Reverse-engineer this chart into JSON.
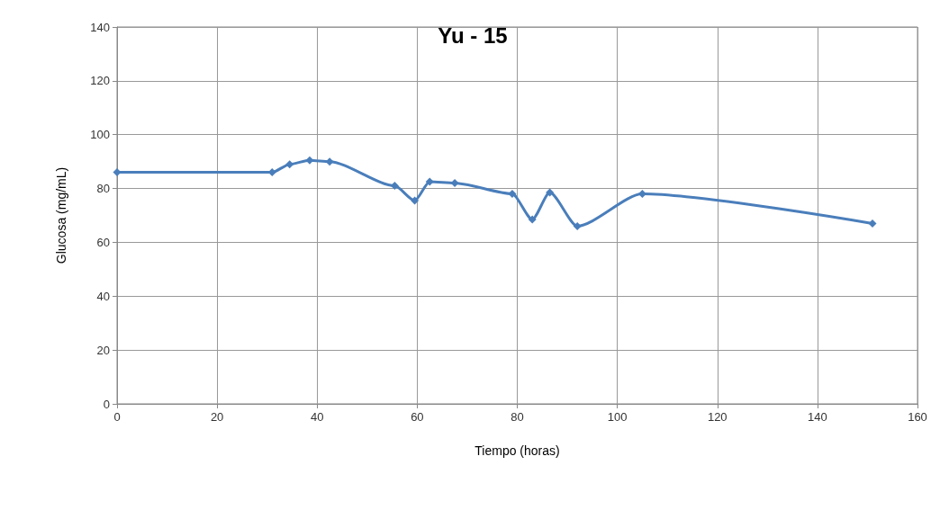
{
  "chart_data": {
    "type": "line",
    "title": "Yu - 15",
    "xlabel": "Tiempo (horas)",
    "ylabel": "Glucosa (mg/mL)",
    "x": [
      0,
      31,
      34.5,
      38.5,
      42.5,
      55.5,
      59.5,
      62.5,
      67.5,
      79,
      83,
      86.5,
      92,
      105,
      151
    ],
    "series": [
      {
        "color": "#4a7ebb",
        "values": [
          86,
          86,
          89,
          90.5,
          90,
          81,
          75.5,
          82.5,
          82,
          78,
          68.5,
          78.5,
          66,
          78,
          67
        ]
      }
    ],
    "xlim": [
      0,
      160
    ],
    "xticks": [
      0,
      20,
      40,
      60,
      80,
      100,
      120,
      140,
      160
    ],
    "ylim": [
      0,
      140
    ],
    "yticks": [
      0,
      20,
      40,
      60,
      80,
      100,
      120,
      140
    ],
    "grid": true,
    "marker": "diamond"
  }
}
